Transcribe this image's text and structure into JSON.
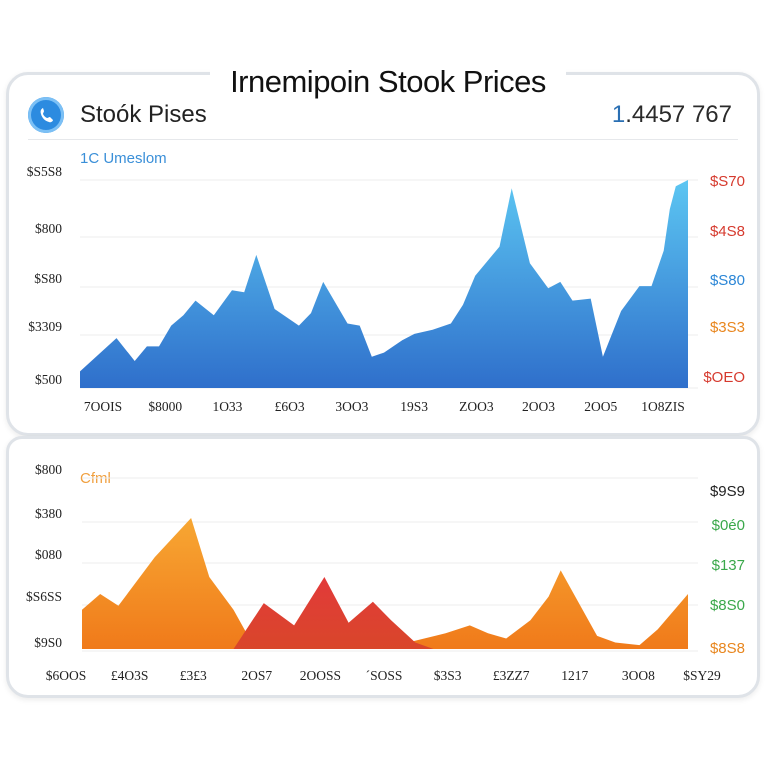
{
  "title": "Irnemipoin Stook Prices",
  "header": {
    "title": "Stoók Pises",
    "value_accent": "1",
    "value_rest": ".4457 767",
    "accent_color": "#2a6fb3",
    "logo_icon": "phone-icon"
  },
  "chart_data": [
    {
      "type": "area",
      "subtitle": "1C Umeslom",
      "x_labels": [
        "7OOIS",
        "$8000",
        "1O33",
        "£6O3",
        "3OO3",
        "19S3",
        "ZOO3",
        "2OO3",
        "2OO5",
        "1O8ZIS"
      ],
      "y_tick_labels_left": [
        "$500",
        "$3309",
        "$S80",
        "$800",
        "$S5S8"
      ],
      "y_tick_labels_right": [
        {
          "label": "$S70",
          "color": "#d63a2e"
        },
        {
          "label": "$4S8",
          "color": "#d63a2e"
        },
        {
          "label": "$S80",
          "color": "#2b86d6"
        },
        {
          "label": "$3S3",
          "color": "#e8861e"
        },
        {
          "label": "$OEO",
          "color": "#d63a2e"
        }
      ],
      "y_range": [
        0,
        100
      ],
      "grid": true,
      "series": [
        {
          "color_top": "#5cc6f2",
          "color_bottom": "#2f6fcb",
          "x": [
            0,
            0.06,
            0.09,
            0.11,
            0.13,
            0.15,
            0.17,
            0.19,
            0.22,
            0.25,
            0.27,
            0.29,
            0.32,
            0.36,
            0.38,
            0.4,
            0.44,
            0.46,
            0.48,
            0.5,
            0.53,
            0.55,
            0.58,
            0.61,
            0.63,
            0.65,
            0.69,
            0.71,
            0.74,
            0.77,
            0.79,
            0.81,
            0.84,
            0.86,
            0.89,
            0.92,
            0.94,
            0.96,
            0.97,
            0.98,
            1
          ],
          "values": [
            8,
            24,
            13,
            20,
            20,
            30,
            35,
            42,
            35,
            47,
            46,
            64,
            38,
            30,
            36,
            51,
            31,
            30,
            15,
            17,
            23,
            26,
            28,
            31,
            40,
            54,
            68,
            96,
            60,
            48,
            51,
            42,
            43,
            15,
            37,
            49,
            49,
            66,
            86,
            97,
            100
          ]
        }
      ]
    },
    {
      "type": "area",
      "subtitle": "Cfml",
      "x_labels": [
        "$6OOS",
        "£4O3S",
        "£3£3",
        "2OS7",
        "2OOSS",
        "´SOSS",
        "$3S3",
        "£3ZZ7",
        "1217",
        "3OO8",
        "$SY29"
      ],
      "y_tick_labels_left": [
        "$9S0",
        "$S6SS",
        "$080",
        "$380",
        "$800"
      ],
      "y_tick_labels_right": [
        {
          "label": "$9S9",
          "color": "#222222"
        },
        {
          "label": "$0é0",
          "color": "#3aa84a"
        },
        {
          "label": "$137",
          "color": "#3aa84a"
        },
        {
          "label": "$8S0",
          "color": "#3aa84a"
        },
        {
          "label": "$8S8",
          "color": "#e8861e"
        }
      ],
      "y_range": [
        0,
        100
      ],
      "grid": true,
      "series": [
        {
          "color_top": "#f7a733",
          "color_bottom": "#f07a1a",
          "x": [
            0,
            0.03,
            0.06,
            0.12,
            0.18,
            0.21,
            0.25,
            0.28,
            0.32,
            0.36,
            0.42,
            0.52,
            0.6,
            0.64,
            0.67,
            0.7,
            0.74,
            0.77,
            0.79,
            0.82,
            0.85,
            0.88,
            0.92,
            0.95,
            1
          ],
          "values": [
            30,
            42,
            33,
            70,
            100,
            55,
            30,
            5,
            5,
            3,
            4,
            3,
            12,
            18,
            12,
            8,
            22,
            40,
            60,
            35,
            10,
            5,
            3,
            15,
            42
          ]
        },
        {
          "color_top": "#e23a3a",
          "color_bottom": "#d9462a",
          "x": [
            0.25,
            0.3,
            0.35,
            0.4,
            0.44,
            0.48,
            0.51,
            0.55,
            0.58
          ],
          "values": [
            0,
            35,
            18,
            55,
            20,
            36,
            22,
            5,
            0
          ]
        }
      ]
    }
  ]
}
